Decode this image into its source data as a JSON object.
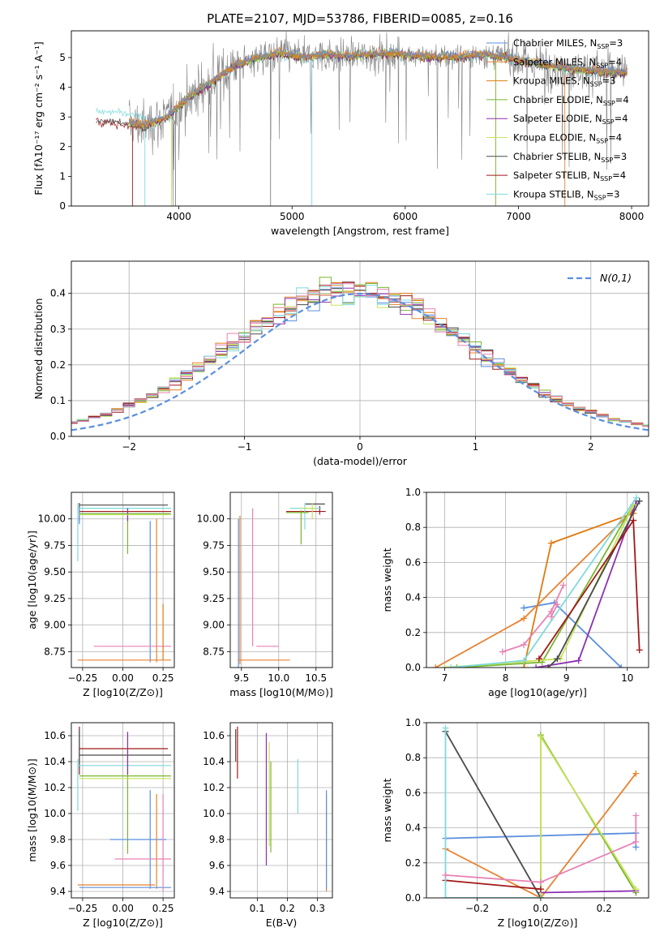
{
  "figure": {
    "title": "PLATE=2107, MJD=53786, FIBERID=0085, z=0.16"
  },
  "palette": {
    "Chabrier MILES": "#5b8fde",
    "Salpeter MILES": "#e8812f",
    "Kroupa MILES": "#e07b10",
    "Chabrier ELODIE": "#79b72e",
    "Salpeter ELODIE": "#8d2fb0",
    "Kroupa ELODIE": "#c5e35a",
    "Chabrier STELIB": "#4a4a4a",
    "Salpeter STELIB": "#a11818",
    "Kroupa STELIB": "#7fd9dc",
    "data": "#808080",
    "normal": "#5b8fde",
    "pink": "#e882b4",
    "grid": "#b0b0b0"
  },
  "chart_data": [
    {
      "id": "spectrum",
      "type": "line",
      "xlabel": "wavelength [Angstrom, rest frame]",
      "ylabel": "Flux [fλ10⁻¹⁷ erg cm⁻² s⁻¹ A⁻¹]",
      "xlim": [
        3050,
        8150
      ],
      "ylim": [
        0,
        5.9
      ],
      "xticks": [
        4000,
        5000,
        6000,
        7000,
        8000
      ],
      "yticks": [
        0,
        1,
        2,
        3,
        4,
        5
      ],
      "grid": false,
      "legend_position": "lower-right",
      "legend": [
        {
          "label": "Chabrier MILES, N_SSP=3",
          "color_key": "Chabrier MILES"
        },
        {
          "label": "Salpeter MILES, N_SSP=4",
          "color_key": "Salpeter MILES"
        },
        {
          "label": "Kroupa MILES, N_SSP=3",
          "color_key": "Kroupa MILES"
        },
        {
          "label": "Chabrier ELODIE, N_SSP=4",
          "color_key": "Chabrier ELODIE"
        },
        {
          "label": "Salpeter ELODIE, N_SSP=4",
          "color_key": "Salpeter ELODIE"
        },
        {
          "label": "Kroupa ELODIE, N_SSP=4",
          "color_key": "Kroupa ELODIE"
        },
        {
          "label": "Chabrier STELIB, N_SSP=3",
          "color_key": "Chabrier STELIB"
        },
        {
          "label": "Salpeter STELIB, N_SSP=4",
          "color_key": "Salpeter STELIB"
        },
        {
          "label": "Kroupa STELIB, N_SSP=3",
          "color_key": "Kroupa STELIB"
        }
      ],
      "model_continuum": {
        "wavelength": [
          3300,
          3500,
          3700,
          3900,
          4100,
          4300,
          4500,
          4700,
          4900,
          5100,
          5300,
          5500,
          5700,
          5900,
          6100,
          6300,
          6500,
          6700,
          6900,
          7100,
          7300,
          7500,
          7700,
          7900
        ],
        "flux": [
          2.9,
          2.85,
          2.7,
          3.0,
          3.7,
          4.2,
          4.75,
          5.0,
          5.15,
          5.0,
          5.1,
          5.05,
          5.1,
          5.15,
          5.05,
          5.0,
          5.05,
          5.1,
          5.0,
          4.85,
          4.7,
          4.6,
          4.55,
          4.5
        ]
      },
      "stelib_blue_extension": {
        "wavelength": [
          3270,
          3400,
          3550,
          3700
        ],
        "flux": [
          3.4,
          3.2,
          3.1,
          2.9
        ]
      }
    },
    {
      "id": "residual_hist",
      "type": "histogram",
      "xlabel": "(data-model)/error",
      "ylabel": "Normed distribution",
      "xlim": [
        -2.5,
        2.5
      ],
      "ylim": [
        0,
        0.49
      ],
      "xticks": [
        -2,
        -1,
        0,
        1,
        2
      ],
      "yticks": [
        0.0,
        0.1,
        0.2,
        0.3,
        0.4
      ],
      "grid": true,
      "bin_width": 0.1,
      "legend": [
        {
          "label": "N(0,1)"
        }
      ],
      "legend_position": "upper-right"
    },
    {
      "id": "age_vs_Z",
      "type": "errorbar",
      "xlabel": "Z [log10(Z/Z⊙)]",
      "ylabel": "age  [log10(age/yr)]",
      "xlim": [
        -0.32,
        0.32
      ],
      "ylim": [
        8.6,
        10.25
      ],
      "xticks": [
        -0.25,
        0.0,
        0.25
      ],
      "yticks": [
        8.75,
        9.0,
        9.25,
        9.5,
        9.75,
        10.0
      ],
      "grid": true
    },
    {
      "id": "age_vs_mass",
      "type": "errorbar",
      "xlabel": "mass [log10(M/M⊙)]",
      "ylabel": "",
      "xlim": [
        9.35,
        10.72
      ],
      "ylim": [
        8.6,
        10.25
      ],
      "xticks": [
        9.5,
        10.0,
        10.5
      ],
      "yticks": [
        8.75,
        9.0,
        9.25,
        9.5,
        9.75,
        10.0
      ],
      "grid": true
    },
    {
      "id": "weight_vs_age",
      "type": "line",
      "xlabel": "age  [log10(age/yr)]",
      "ylabel": "mass weight",
      "xlim": [
        6.7,
        10.35
      ],
      "ylim": [
        0,
        1.0
      ],
      "xticks": [
        7,
        8,
        9,
        10
      ],
      "yticks": [
        0.0,
        0.2,
        0.4,
        0.6,
        0.8,
        1.0
      ],
      "grid": true,
      "series": [
        {
          "color_key": "Chabrier MILES",
          "x": [
            8.3,
            8.8,
            9.9
          ],
          "y": [
            0.34,
            0.37,
            0.0
          ]
        },
        {
          "color_key": "Salpeter MILES",
          "x": [
            6.85,
            8.3,
            10.1
          ],
          "y": [
            0.0,
            0.28,
            0.9
          ]
        },
        {
          "color_key": "Kroupa MILES",
          "x": [
            8.3,
            8.75,
            10.1
          ],
          "y": [
            0.0,
            0.71,
            0.88
          ]
        },
        {
          "color_key": "Chabrier ELODIE",
          "x": [
            7.2,
            8.6,
            10.1
          ],
          "y": [
            0.0,
            0.03,
            0.93
          ]
        },
        {
          "color_key": "Salpeter ELODIE",
          "x": [
            8.5,
            9.2,
            10.15
          ],
          "y": [
            0.0,
            0.04,
            0.95
          ]
        },
        {
          "color_key": "Kroupa ELODIE",
          "x": [
            7.0,
            8.9,
            10.1
          ],
          "y": [
            0.0,
            0.05,
            0.93
          ]
        },
        {
          "color_key": "Chabrier STELIB",
          "x": [
            8.7,
            8.85,
            10.2
          ],
          "y": [
            0.0,
            0.05,
            0.95
          ]
        },
        {
          "color_key": "Salpeter STELIB",
          "x": [
            8.55,
            10.1,
            10.2
          ],
          "y": [
            0.05,
            0.84,
            0.1
          ]
        },
        {
          "color_key": "Kroupa STELIB",
          "x": [
            7.1,
            8.3,
            10.15
          ],
          "y": [
            0.0,
            0.04,
            0.97
          ]
        },
        {
          "color_key": "pink",
          "x": [
            7.95,
            8.3,
            8.75,
            8.95
          ],
          "y": [
            0.09,
            0.13,
            0.32,
            0.47
          ]
        },
        {
          "color_key": "pink",
          "x": [
            8.75,
            8.85
          ],
          "y": [
            0.29,
            0.36
          ]
        }
      ]
    },
    {
      "id": "mass_vs_Z",
      "type": "errorbar",
      "xlabel": "Z [log10(Z/Z⊙)]",
      "ylabel": "mass [log10(M/M⊙)]",
      "xlim": [
        -0.32,
        0.32
      ],
      "ylim": [
        9.35,
        10.7
      ],
      "xticks": [
        -0.25,
        0.0,
        0.25
      ],
      "yticks": [
        9.4,
        9.6,
        9.8,
        10.0,
        10.2,
        10.4,
        10.6
      ],
      "grid": true
    },
    {
      "id": "mass_vs_ebv",
      "type": "errorbar",
      "xlabel": "E(B-V)",
      "ylabel": "",
      "xlim": [
        0.01,
        0.35
      ],
      "ylim": [
        9.35,
        10.7
      ],
      "xticks": [
        0.1,
        0.2,
        0.3
      ],
      "yticks": [
        9.4,
        9.6,
        9.8,
        10.0,
        10.2,
        10.4,
        10.6
      ],
      "grid": true
    },
    {
      "id": "weight_vs_Z",
      "type": "line",
      "xlabel": "Z [log10(Z/Z⊙)]",
      "ylabel": "mass weight",
      "xlim": [
        -0.36,
        0.34
      ],
      "ylim": [
        0,
        1.0
      ],
      "xticks": [
        -0.2,
        0.0,
        0.2
      ],
      "yticks": [
        0.0,
        0.2,
        0.4,
        0.6,
        0.8,
        1.0
      ],
      "grid": true,
      "series": [
        {
          "color_key": "Chabrier MILES",
          "x": [
            -0.3,
            0.3,
            0.3
          ],
          "y": [
            0.34,
            0.37,
            0.29
          ]
        },
        {
          "color_key": "Salpeter MILES",
          "x": [
            -0.3,
            0.0,
            0.3
          ],
          "y": [
            0.28,
            0.0,
            0.71
          ]
        },
        {
          "color_key": "Chabrier ELODIE",
          "x": [
            0.0,
            0.0,
            0.3
          ],
          "y": [
            0.0,
            0.93,
            0.03
          ]
        },
        {
          "color_key": "Salpeter ELODIE",
          "x": [
            0.0,
            0.3
          ],
          "y": [
            0.03,
            0.04
          ]
        },
        {
          "color_key": "Kroupa ELODIE",
          "x": [
            0.0,
            0.0,
            0.3
          ],
          "y": [
            0.0,
            0.92,
            0.05
          ]
        },
        {
          "color_key": "Chabrier STELIB",
          "x": [
            -0.3,
            0.0
          ],
          "y": [
            0.95,
            0.0
          ]
        },
        {
          "color_key": "Salpeter STELIB",
          "x": [
            -0.3,
            0.0
          ],
          "y": [
            0.1,
            0.05
          ]
        },
        {
          "color_key": "Kroupa STELIB",
          "x": [
            -0.3,
            -0.3,
            0.0
          ],
          "y": [
            0.97,
            0.0,
            0.0
          ]
        },
        {
          "color_key": "pink",
          "x": [
            -0.3,
            0.0,
            0.3,
            0.3
          ],
          "y": [
            0.13,
            0.09,
            0.32,
            0.47
          ]
        }
      ]
    }
  ]
}
